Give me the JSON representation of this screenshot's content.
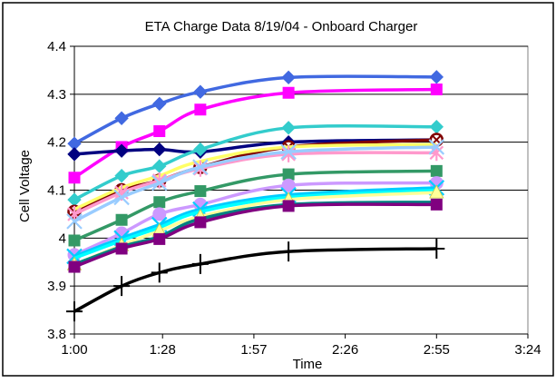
{
  "chart_data": {
    "type": "line",
    "title": "ETA Charge Data 8/19/04 - Onboard Charger",
    "xlabel": "Time",
    "ylabel": "Cell Voltage",
    "x_ticks": [
      "1:00",
      "1:28",
      "1:57",
      "2:26",
      "2:55",
      "3:24"
    ],
    "y_ticks": [
      "3.8",
      "3.9",
      "4",
      "4.1",
      "4.2",
      "4.3",
      "4.4"
    ],
    "xlim_minutes": [
      60,
      204
    ],
    "ylim": [
      3.8,
      4.4
    ],
    "grid": "horizontal",
    "x_minutes": [
      60,
      75,
      87,
      100,
      128,
      175
    ],
    "series": [
      {
        "color": "#4169E1",
        "marker": "diamond",
        "values": [
          4.197,
          4.25,
          4.28,
          4.305,
          4.335,
          4.336
        ]
      },
      {
        "color": "#FF00FF",
        "marker": "square",
        "values": [
          4.126,
          4.19,
          4.223,
          4.268,
          4.303,
          4.31
        ]
      },
      {
        "color": "#000080",
        "marker": "diamond",
        "values": [
          4.175,
          4.182,
          4.185,
          4.18,
          4.2,
          4.205
        ]
      },
      {
        "color": "#33CCCC",
        "marker": "diamond",
        "values": [
          4.08,
          4.13,
          4.15,
          4.185,
          4.23,
          4.232
        ]
      },
      {
        "color": "#800000",
        "marker": "circle-x",
        "values": [
          4.055,
          4.1,
          4.12,
          4.148,
          4.19,
          4.205
        ]
      },
      {
        "color": "#FFFF66",
        "marker": "none",
        "values": [
          4.06,
          4.105,
          4.13,
          4.16,
          4.19,
          4.195
        ]
      },
      {
        "color": "#FF99CC",
        "marker": "star",
        "values": [
          4.05,
          4.095,
          4.12,
          4.145,
          4.175,
          4.178
        ]
      },
      {
        "color": "#99CCFF",
        "marker": "x",
        "values": [
          4.035,
          4.085,
          4.115,
          4.148,
          4.18,
          4.19
        ]
      },
      {
        "color": "#339966",
        "marker": "square",
        "values": [
          3.995,
          4.038,
          4.075,
          4.098,
          4.133,
          4.14
        ]
      },
      {
        "color": "#CC99FF",
        "marker": "circle",
        "values": [
          3.965,
          4.01,
          4.05,
          4.07,
          4.11,
          4.115
        ]
      },
      {
        "color": "#00CCFF",
        "marker": "x",
        "values": [
          3.962,
          4.0,
          4.028,
          4.06,
          4.09,
          4.105
        ]
      },
      {
        "color": "#00FFFF",
        "marker": "none",
        "values": [
          3.958,
          3.995,
          4.022,
          4.055,
          4.085,
          4.1
        ]
      },
      {
        "color": "#FFFF99",
        "marker": "triangle",
        "values": [
          3.945,
          3.985,
          4.015,
          4.045,
          4.08,
          4.095
        ]
      },
      {
        "color": "#008080",
        "marker": "none",
        "values": [
          3.945,
          3.982,
          4.003,
          4.04,
          4.07,
          4.075
        ]
      },
      {
        "color": "#800080",
        "marker": "square",
        "values": [
          3.94,
          3.978,
          3.998,
          4.033,
          4.067,
          4.07
        ]
      },
      {
        "color": "#000000",
        "marker": "plus",
        "values": [
          3.847,
          3.9,
          3.928,
          3.946,
          3.972,
          3.978
        ]
      }
    ]
  }
}
